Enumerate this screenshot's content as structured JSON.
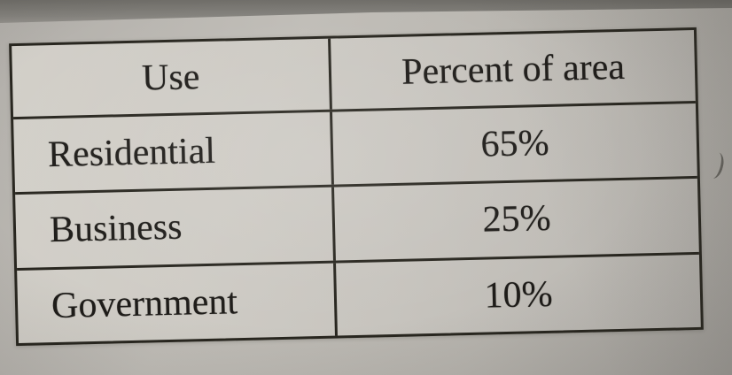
{
  "table": {
    "headers": [
      "Use",
      "Percent of area"
    ],
    "rows": [
      {
        "use": "Residential",
        "percent": "65%"
      },
      {
        "use": "Business",
        "percent": "25%"
      },
      {
        "use": "Government",
        "percent": "10%"
      }
    ]
  },
  "chart_data": {
    "type": "table",
    "title": "",
    "columns": [
      "Use",
      "Percent of area"
    ],
    "categories": [
      "Residential",
      "Business",
      "Government"
    ],
    "values": [
      65,
      25,
      10
    ],
    "value_unit": "%"
  },
  "colors": {
    "ink": "#1e1c19",
    "paper": "#c9c6c0",
    "background": "#b2afaa"
  }
}
